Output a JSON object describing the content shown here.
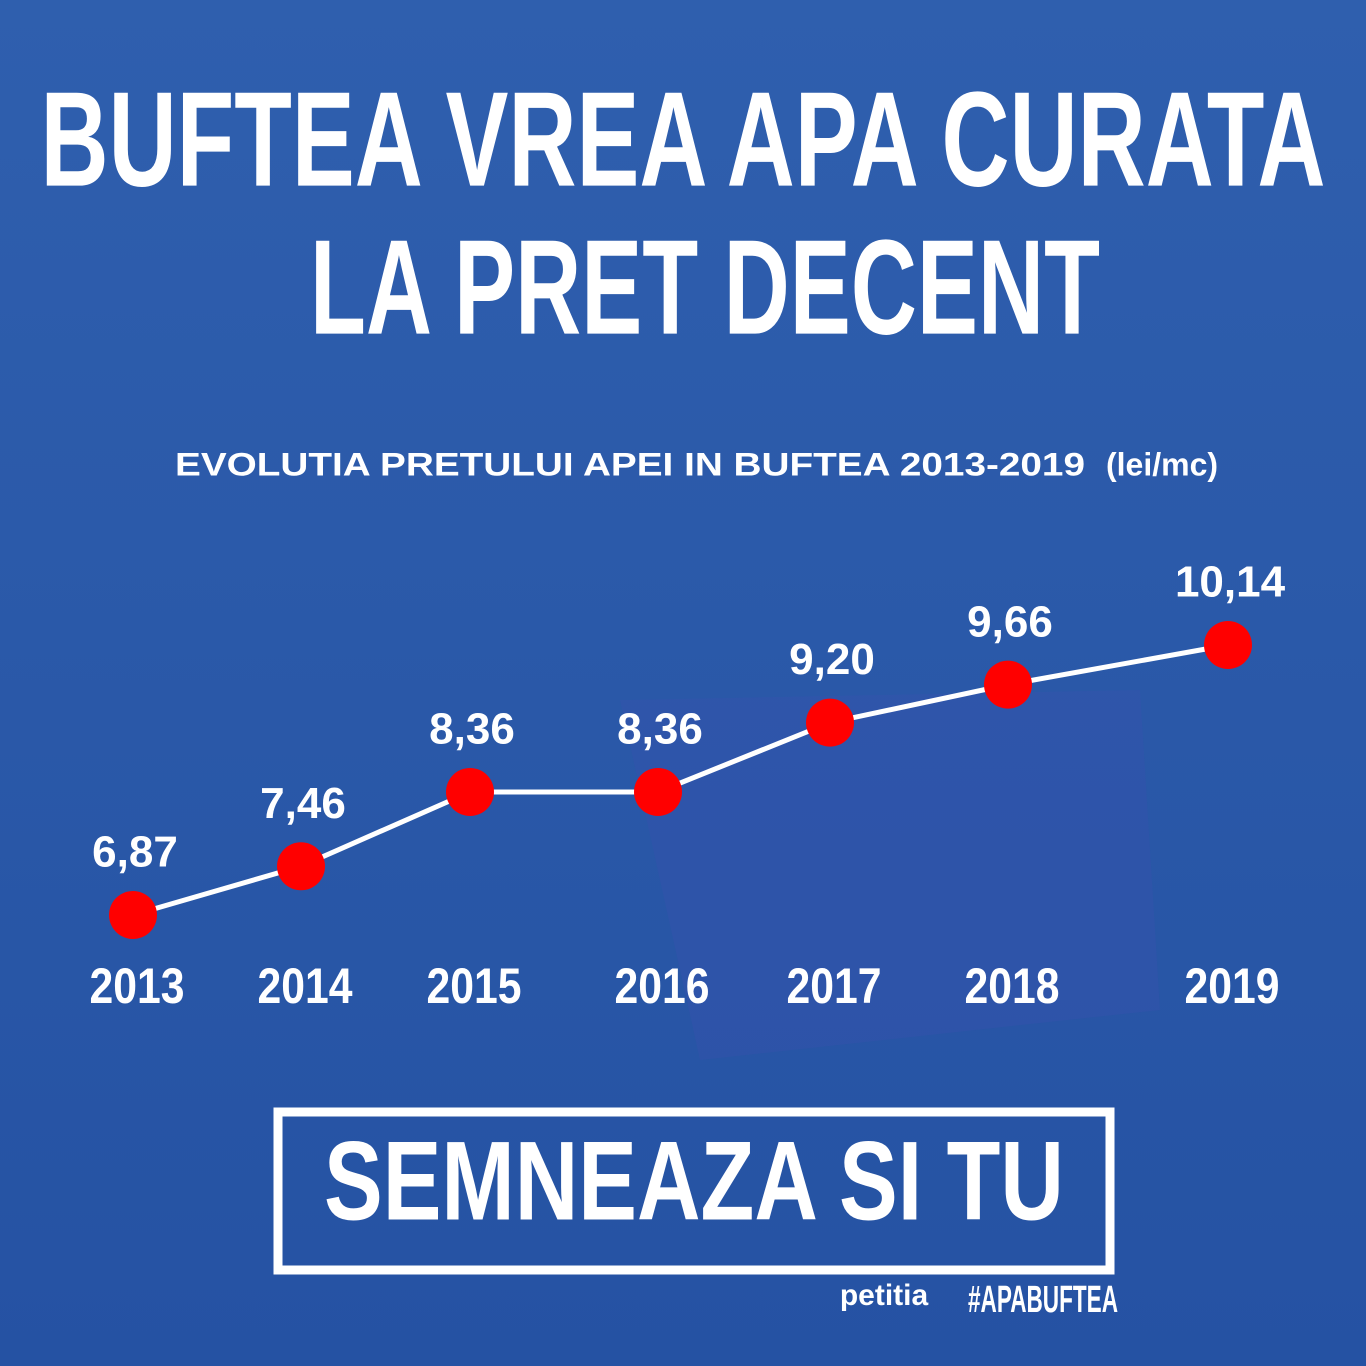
{
  "chart_data": {
    "type": "line",
    "title": [
      "BUFTEA VREA APA CURATA",
      "LA PRET DECENT"
    ],
    "subtitle": "EVOLUTIA PRETULUI APEI IN BUFTEA 2013-2019",
    "unit": "(lei/mc)",
    "categories": [
      "2013",
      "2014",
      "2015",
      "2016",
      "2017",
      "2018",
      "2019"
    ],
    "values": [
      6.87,
      7.46,
      8.36,
      8.36,
      9.2,
      9.66,
      10.14
    ],
    "value_labels": [
      "6,87",
      "7,46",
      "8,36",
      "8,36",
      "9,20",
      "9,66",
      "10,14"
    ],
    "line_color": "#ffffff",
    "marker_color": "#ff0000"
  },
  "cta": {
    "button": "SEMNEAZA SI TU",
    "brand": "petitia",
    "hashtag": "#APABUFTEA"
  }
}
